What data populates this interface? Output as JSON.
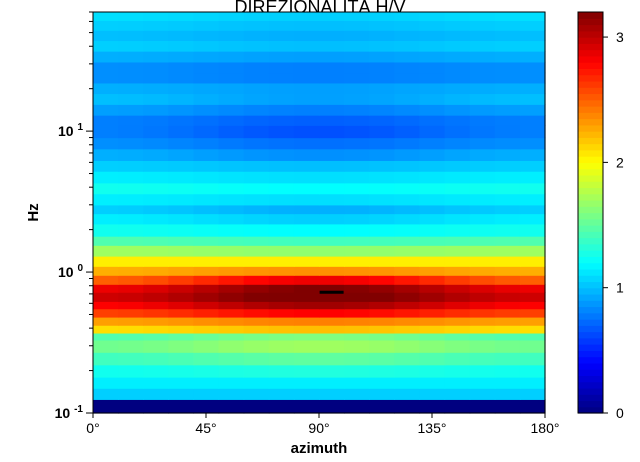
{
  "chart_data": {
    "type": "heatmap",
    "title": "DIREZIONALITÀ H/V",
    "xlabel": "azimuth",
    "ylabel": "Hz",
    "xlim": [
      0,
      180
    ],
    "ylim": [
      0.1,
      70
    ],
    "yscale": "log",
    "x_ticks": [
      "0°",
      "45°",
      "90°",
      "135°",
      "180°"
    ],
    "y_ticks": [
      {
        "base": "10",
        "exp": "-1"
      },
      {
        "base": "10",
        "exp": "0"
      },
      {
        "base": "10",
        "exp": "1"
      }
    ],
    "colorbar": {
      "range": [
        0,
        3.2
      ],
      "ticks": [
        "0",
        "1",
        "2",
        "3"
      ],
      "colormap": "jet"
    },
    "azimuth_columns": [
      0,
      10,
      20,
      30,
      40,
      50,
      60,
      70,
      80,
      90,
      100,
      110,
      120,
      130,
      140,
      150,
      160,
      170
    ],
    "frequency_bands": [
      {
        "f_low": 0.1,
        "f_high": 0.125,
        "edge": 0.0,
        "center": 0.0
      },
      {
        "f_low": 0.125,
        "f_high": 0.15,
        "edge": 1.05,
        "center": 1.05
      },
      {
        "f_low": 0.15,
        "f_high": 0.18,
        "edge": 1.15,
        "center": 1.15
      },
      {
        "f_low": 0.18,
        "f_high": 0.22,
        "edge": 1.25,
        "center": 1.3
      },
      {
        "f_low": 0.22,
        "f_high": 0.27,
        "edge": 1.4,
        "center": 1.5
      },
      {
        "f_low": 0.27,
        "f_high": 0.33,
        "edge": 1.55,
        "center": 1.7
      },
      {
        "f_low": 0.33,
        "f_high": 0.37,
        "edge": 1.45,
        "center": 1.6
      },
      {
        "f_low": 0.37,
        "f_high": 0.42,
        "edge": 2.1,
        "center": 2.2
      },
      {
        "f_low": 0.42,
        "f_high": 0.48,
        "edge": 2.3,
        "center": 2.4
      },
      {
        "f_low": 0.48,
        "f_high": 0.55,
        "edge": 2.6,
        "center": 2.8
      },
      {
        "f_low": 0.55,
        "f_high": 0.62,
        "edge": 2.8,
        "center": 3.1
      },
      {
        "f_low": 0.62,
        "f_high": 0.72,
        "edge": 2.95,
        "center": 3.25
      },
      {
        "f_low": 0.72,
        "f_high": 0.82,
        "edge": 2.85,
        "center": 3.2
      },
      {
        "f_low": 0.82,
        "f_high": 0.95,
        "edge": 2.5,
        "center": 2.85
      },
      {
        "f_low": 0.95,
        "f_high": 1.1,
        "edge": 2.25,
        "center": 2.35
      },
      {
        "f_low": 1.1,
        "f_high": 1.3,
        "edge": 2.05,
        "center": 2.05
      },
      {
        "f_low": 1.3,
        "f_high": 1.55,
        "edge": 1.7,
        "center": 1.65
      },
      {
        "f_low": 1.55,
        "f_high": 1.8,
        "edge": 1.45,
        "center": 1.4
      },
      {
        "f_low": 1.8,
        "f_high": 2.2,
        "edge": 1.25,
        "center": 1.2
      },
      {
        "f_low": 2.2,
        "f_high": 2.6,
        "edge": 1.15,
        "center": 1.05
      },
      {
        "f_low": 2.6,
        "f_high": 3.0,
        "edge": 1.05,
        "center": 0.95
      },
      {
        "f_low": 3.0,
        "f_high": 3.6,
        "edge": 1.15,
        "center": 1.1
      },
      {
        "f_low": 3.6,
        "f_high": 4.3,
        "edge": 1.25,
        "center": 1.2
      },
      {
        "f_low": 4.3,
        "f_high": 5.2,
        "edge": 1.15,
        "center": 1.1
      },
      {
        "f_low": 5.2,
        "f_high": 6.2,
        "edge": 1.05,
        "center": 1.0
      },
      {
        "f_low": 6.2,
        "f_high": 7.5,
        "edge": 0.95,
        "center": 0.85
      },
      {
        "f_low": 7.5,
        "f_high": 9.0,
        "edge": 0.85,
        "center": 0.75
      },
      {
        "f_low": 9.0,
        "f_high": 11.0,
        "edge": 0.8,
        "center": 0.65
      },
      {
        "f_low": 11.0,
        "f_high": 13.0,
        "edge": 0.8,
        "center": 0.7
      },
      {
        "f_low": 13.0,
        "f_high": 15.5,
        "edge": 0.9,
        "center": 0.8
      },
      {
        "f_low": 15.5,
        "f_high": 18.5,
        "edge": 1.0,
        "center": 0.9
      },
      {
        "f_low": 18.5,
        "f_high": 22.0,
        "edge": 0.95,
        "center": 0.9
      },
      {
        "f_low": 22.0,
        "f_high": 26.0,
        "edge": 0.85,
        "center": 0.8
      },
      {
        "f_low": 26.0,
        "f_high": 31.0,
        "edge": 0.85,
        "center": 0.8
      },
      {
        "f_low": 31.0,
        "f_high": 37.0,
        "edge": 0.95,
        "center": 0.9
      },
      {
        "f_low": 37.0,
        "f_high": 44.0,
        "edge": 1.05,
        "center": 1.0
      },
      {
        "f_low": 44.0,
        "f_high": 52.0,
        "edge": 1.0,
        "center": 0.95
      },
      {
        "f_low": 52.0,
        "f_high": 61.0,
        "edge": 1.05,
        "center": 1.0
      },
      {
        "f_low": 61.0,
        "f_high": 70.0,
        "edge": 1.1,
        "center": 1.05
      }
    ],
    "peak_marker": {
      "azimuth": 95,
      "frequency": 0.72
    }
  }
}
